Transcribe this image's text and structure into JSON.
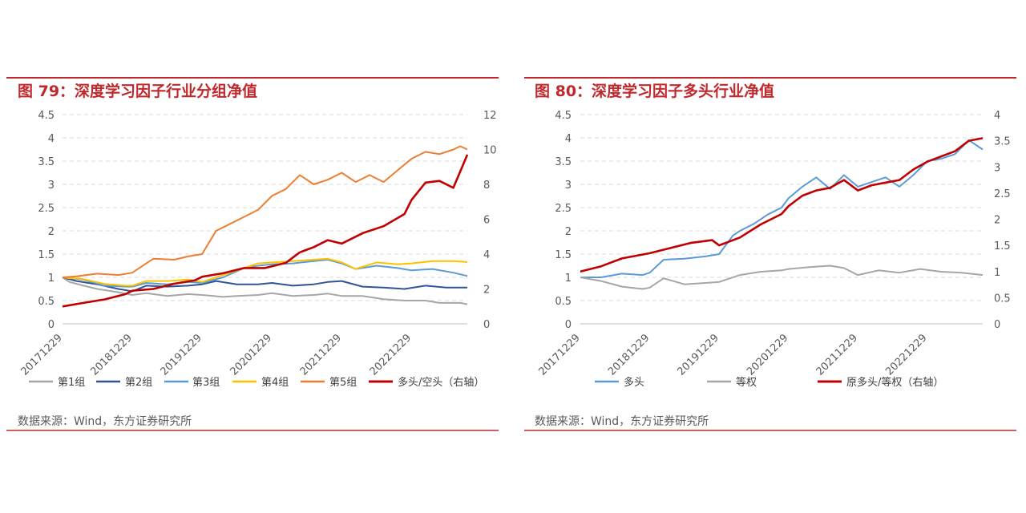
{
  "charts": [
    {
      "title": "图 79：深度学习因子行业分组净值",
      "source": "数据来源：Wind，东方证券研究所"
    },
    {
      "title": "图 80：深度学习因子多头行业净值",
      "source": "数据来源：Wind，东方证券研究所"
    }
  ],
  "colors": {
    "title_red": "#c0282c",
    "group1": "#a6a6a6",
    "group2": "#2f5597",
    "group3": "#5b9bd5",
    "group4": "#ffc000",
    "group5": "#ed7d31",
    "longshort": "#c00000",
    "long": "#5b9bd5",
    "equal": "#a6a6a6"
  },
  "chart_data": [
    {
      "type": "line",
      "title": "图 79：深度学习因子行业分组净值",
      "x_ticks": [
        "20171229",
        "20181229",
        "20191229",
        "20201229",
        "20211229",
        "20221229"
      ],
      "y_left": {
        "range": [
          0,
          4.5
        ],
        "ticks": [
          "0",
          "0.5",
          "1",
          "1.5",
          "2",
          "2.5",
          "3",
          "3.5",
          "4",
          "4.5"
        ]
      },
      "y_right": {
        "range": [
          0,
          12
        ],
        "ticks": [
          "0",
          "2",
          "4",
          "6",
          "8",
          "10",
          "12"
        ]
      },
      "grid": "horizontal dashed",
      "legend_position": "bottom",
      "series": [
        {
          "name": "第1组",
          "axis": "left",
          "color": "#a6a6a6",
          "x": [
            0,
            0.1,
            0.3,
            0.5,
            0.8,
            1.0,
            1.2,
            1.5,
            1.8,
            2.0,
            2.3,
            2.5,
            2.8,
            3.0,
            3.3,
            3.6,
            3.8,
            4.0,
            4.3,
            4.6,
            4.9,
            5.2,
            5.4,
            5.7,
            5.8
          ],
          "y": [
            1.0,
            0.9,
            0.82,
            0.75,
            0.68,
            0.62,
            0.66,
            0.6,
            0.64,
            0.62,
            0.58,
            0.6,
            0.62,
            0.66,
            0.6,
            0.62,
            0.65,
            0.6,
            0.6,
            0.53,
            0.5,
            0.5,
            0.45,
            0.45,
            0.42
          ]
        },
        {
          "name": "第2组",
          "axis": "left",
          "color": "#2f5597",
          "x": [
            0,
            0.2,
            0.5,
            0.8,
            1.0,
            1.2,
            1.5,
            1.8,
            2.0,
            2.2,
            2.5,
            2.8,
            3.0,
            3.3,
            3.6,
            3.8,
            4.0,
            4.3,
            4.6,
            4.9,
            5.2,
            5.5,
            5.8
          ],
          "y": [
            1.0,
            0.92,
            0.85,
            0.75,
            0.7,
            0.82,
            0.8,
            0.82,
            0.85,
            0.92,
            0.85,
            0.85,
            0.88,
            0.82,
            0.85,
            0.9,
            0.92,
            0.8,
            0.78,
            0.75,
            0.82,
            0.78,
            0.78
          ]
        },
        {
          "name": "第3组",
          "axis": "left",
          "color": "#5b9bd5",
          "x": [
            0,
            0.3,
            0.6,
            0.9,
            1.0,
            1.2,
            1.5,
            1.8,
            2.0,
            2.3,
            2.6,
            2.8,
            3.0,
            3.3,
            3.6,
            3.8,
            4.0,
            4.2,
            4.5,
            4.8,
            5.0,
            5.3,
            5.6,
            5.8
          ],
          "y": [
            1.0,
            0.95,
            0.82,
            0.8,
            0.8,
            0.88,
            0.85,
            0.9,
            0.88,
            1.0,
            1.2,
            1.25,
            1.28,
            1.3,
            1.35,
            1.38,
            1.3,
            1.18,
            1.25,
            1.2,
            1.15,
            1.18,
            1.1,
            1.03
          ]
        },
        {
          "name": "第4组",
          "axis": "left",
          "color": "#ffc000",
          "x": [
            0,
            0.3,
            0.6,
            0.9,
            1.0,
            1.2,
            1.5,
            1.8,
            2.0,
            2.3,
            2.6,
            2.8,
            3.0,
            3.3,
            3.6,
            3.8,
            4.0,
            4.2,
            4.5,
            4.8,
            5.0,
            5.3,
            5.6,
            5.8
          ],
          "y": [
            1.0,
            0.96,
            0.86,
            0.82,
            0.82,
            0.92,
            0.92,
            0.95,
            0.9,
            1.05,
            1.2,
            1.3,
            1.32,
            1.35,
            1.38,
            1.4,
            1.32,
            1.18,
            1.32,
            1.28,
            1.3,
            1.35,
            1.35,
            1.33
          ]
        },
        {
          "name": "第5组",
          "axis": "left",
          "color": "#ed7d31",
          "x": [
            0,
            0.2,
            0.5,
            0.8,
            1.0,
            1.2,
            1.3,
            1.6,
            1.8,
            2.0,
            2.2,
            2.4,
            2.6,
            2.8,
            3.0,
            3.2,
            3.4,
            3.6,
            3.8,
            4.0,
            4.2,
            4.4,
            4.6,
            4.8,
            5.0,
            5.2,
            5.4,
            5.6,
            5.7,
            5.8
          ],
          "y": [
            1.0,
            1.02,
            1.08,
            1.05,
            1.1,
            1.3,
            1.4,
            1.38,
            1.45,
            1.5,
            2.0,
            2.15,
            2.3,
            2.45,
            2.75,
            2.9,
            3.2,
            3.0,
            3.1,
            3.25,
            3.05,
            3.2,
            3.05,
            3.3,
            3.55,
            3.7,
            3.65,
            3.75,
            3.82,
            3.75
          ]
        },
        {
          "name": "多头/空头（右轴）",
          "axis": "right",
          "color": "#c00000",
          "x": [
            0,
            0.3,
            0.6,
            0.9,
            1.0,
            1.3,
            1.6,
            1.9,
            2.0,
            2.3,
            2.6,
            2.9,
            3.0,
            3.2,
            3.4,
            3.6,
            3.8,
            4.0,
            4.3,
            4.6,
            4.9,
            5.0,
            5.2,
            5.4,
            5.6,
            5.8
          ],
          "y": [
            1.0,
            1.2,
            1.4,
            1.7,
            1.9,
            2.0,
            2.3,
            2.5,
            2.7,
            2.9,
            3.2,
            3.2,
            3.3,
            3.5,
            4.1,
            4.4,
            4.8,
            4.6,
            5.2,
            5.6,
            6.3,
            7.1,
            8.1,
            8.2,
            7.8,
            9.7
          ]
        }
      ]
    },
    {
      "type": "line",
      "title": "图 80：深度学习因子多头行业净值",
      "x_ticks": [
        "20171229",
        "20181229",
        "20191229",
        "20201229",
        "20211229",
        "20221229"
      ],
      "y_left": {
        "range": [
          0,
          4.5
        ],
        "ticks": [
          "0",
          "0.5",
          "1",
          "1.5",
          "2",
          "2.5",
          "3",
          "3.5",
          "4",
          "4.5"
        ]
      },
      "y_right": {
        "range": [
          0,
          4
        ],
        "ticks": [
          "0",
          "0.5",
          "1",
          "1.5",
          "2",
          "2.5",
          "3",
          "3.5",
          "4"
        ]
      },
      "grid": "horizontal dashed",
      "legend_position": "bottom",
      "series": [
        {
          "name": "多头",
          "axis": "left",
          "color": "#5b9bd5",
          "x": [
            0,
            0.3,
            0.6,
            0.9,
            1.0,
            1.2,
            1.5,
            1.8,
            2.0,
            2.2,
            2.3,
            2.5,
            2.7,
            2.9,
            3.0,
            3.2,
            3.4,
            3.6,
            3.8,
            4.0,
            4.2,
            4.4,
            4.6,
            4.8,
            5.0,
            5.2,
            5.4,
            5.6,
            5.8
          ],
          "y": [
            1.0,
            1.0,
            1.08,
            1.05,
            1.1,
            1.38,
            1.4,
            1.45,
            1.5,
            1.9,
            2.0,
            2.15,
            2.35,
            2.5,
            2.7,
            2.95,
            3.15,
            2.9,
            3.2,
            2.95,
            3.05,
            3.15,
            2.95,
            3.2,
            3.5,
            3.55,
            3.65,
            3.95,
            3.75
          ]
        },
        {
          "name": "等权",
          "axis": "left",
          "color": "#a6a6a6",
          "x": [
            0,
            0.3,
            0.6,
            0.9,
            1.0,
            1.2,
            1.5,
            1.8,
            2.0,
            2.3,
            2.6,
            2.9,
            3.0,
            3.3,
            3.6,
            3.8,
            4.0,
            4.3,
            4.6,
            4.9,
            5.2,
            5.5,
            5.8
          ],
          "y": [
            1.0,
            0.92,
            0.8,
            0.75,
            0.78,
            0.98,
            0.85,
            0.88,
            0.9,
            1.05,
            1.12,
            1.15,
            1.18,
            1.22,
            1.25,
            1.2,
            1.05,
            1.15,
            1.1,
            1.18,
            1.12,
            1.1,
            1.05
          ]
        },
        {
          "name": "原多头/等权（右轴）",
          "axis": "right",
          "color": "#c00000",
          "x": [
            0,
            0.3,
            0.6,
            1.0,
            1.3,
            1.6,
            1.9,
            2.0,
            2.3,
            2.6,
            2.9,
            3.0,
            3.2,
            3.4,
            3.6,
            3.8,
            4.0,
            4.2,
            4.4,
            4.6,
            4.8,
            5.0,
            5.2,
            5.4,
            5.6,
            5.8
          ],
          "y": [
            1.0,
            1.1,
            1.25,
            1.35,
            1.45,
            1.55,
            1.6,
            1.5,
            1.65,
            1.9,
            2.1,
            2.25,
            2.45,
            2.55,
            2.6,
            2.75,
            2.55,
            2.65,
            2.7,
            2.75,
            2.95,
            3.1,
            3.2,
            3.3,
            3.5,
            3.55
          ]
        }
      ]
    }
  ]
}
